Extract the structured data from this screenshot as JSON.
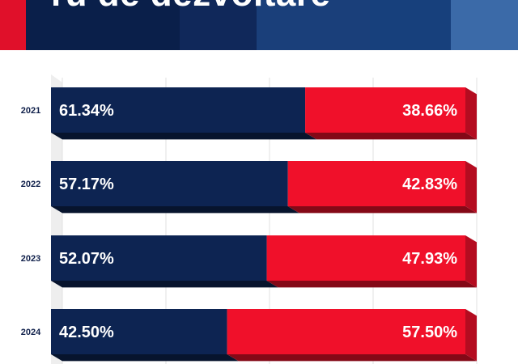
{
  "header": {
    "title": "ru de dezvoltare",
    "colors": [
      "#e0102a",
      "#0a1f4a",
      "#10285a",
      "#1a3f7a",
      "#2a5a99",
      "#3b6aa8"
    ]
  },
  "chart_data": {
    "type": "bar",
    "stacked": true,
    "orientation": "horizontal",
    "categories": [
      "2021",
      "2022",
      "2023",
      "2024"
    ],
    "series": [
      {
        "values": [
          61.34,
          57.17,
          52.07,
          42.5
        ],
        "labels": [
          "61.34%",
          "57.17%",
          "52.07%",
          "42.50%"
        ],
        "color": "#0d2452"
      },
      {
        "values": [
          38.66,
          42.83,
          47.93,
          57.5
        ],
        "labels": [
          "38.66%",
          "42.83%",
          "47.93%",
          "57.50%"
        ],
        "color": "#f0102a"
      }
    ],
    "xlim": [
      0,
      100
    ],
    "grid": true
  }
}
